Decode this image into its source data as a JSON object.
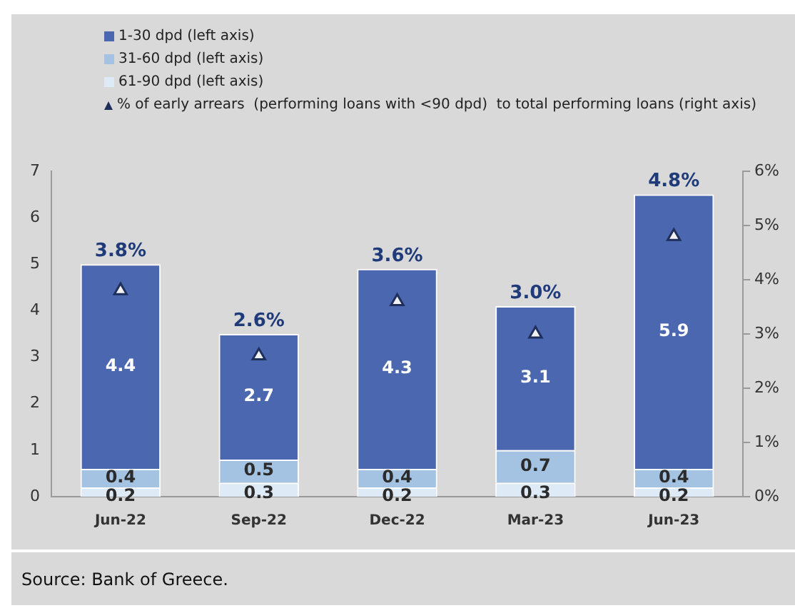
{
  "chart_data": {
    "type": "bar",
    "stacked": true,
    "categories": [
      "Jun-22",
      "Sep-22",
      "Dec-22",
      "Mar-23",
      "Jun-23"
    ],
    "series": [
      {
        "name": "61-90 dpd (left axis)",
        "color": "#deebf7",
        "values": [
          0.2,
          0.3,
          0.2,
          0.3,
          0.2
        ]
      },
      {
        "name": "31-60 dpd (left axis)",
        "color": "#a4c3e2",
        "values": [
          0.4,
          0.5,
          0.4,
          0.7,
          0.4
        ]
      },
      {
        "name": "1-30 dpd (left axis)",
        "color": "#4a67b0",
        "values": [
          4.4,
          2.7,
          4.3,
          3.1,
          5.9
        ]
      },
      {
        "name": "% of early arrears  (performing loans with <90 dpd)  to total performing loans (right axis)",
        "type": "scatter",
        "axis": "y2",
        "marker": "triangle",
        "color": "#1f2f5c",
        "values": [
          3.8,
          2.6,
          3.6,
          3.0,
          4.8
        ],
        "value_labels": [
          "3.8%",
          "2.6%",
          "3.6%",
          "3.0%",
          "4.8%"
        ]
      }
    ],
    "ylim": [
      0,
      7
    ],
    "yticks": [
      0,
      1,
      2,
      3,
      4,
      5,
      6,
      7
    ],
    "y2lim": [
      0,
      6
    ],
    "y2ticks": [
      {
        "value": 0,
        "label": "0%"
      },
      {
        "value": 1,
        "label": "1%"
      },
      {
        "value": 2,
        "label": "2%"
      },
      {
        "value": 3,
        "label": "3%"
      },
      {
        "value": 4,
        "label": "4%"
      },
      {
        "value": 5,
        "label": "5%"
      },
      {
        "value": 6,
        "label": "6%"
      }
    ],
    "data_labels": true,
    "legend": "top",
    "grid": false,
    "annotations": [
      "Source: Bank of Greece."
    ]
  }
}
